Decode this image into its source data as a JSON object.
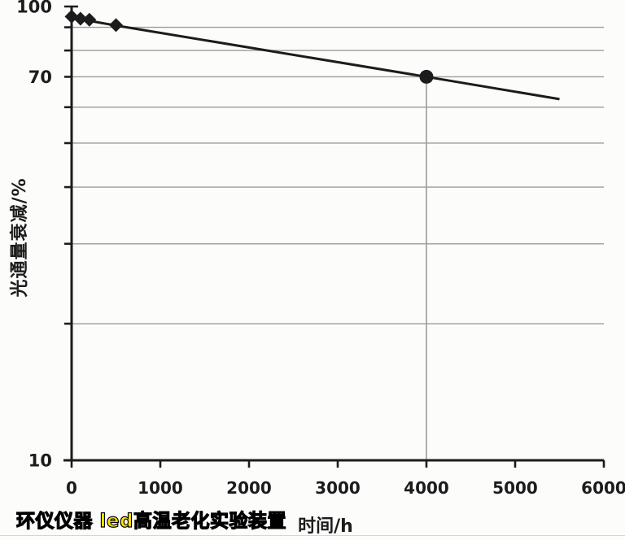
{
  "page": {
    "background": "#fcfcfb",
    "divider_color": "#d6d6d6"
  },
  "watermark": {
    "text": "环仪仪器 led高温老化实验装置",
    "fill": "#ffe800",
    "outline": "#000000"
  },
  "chart_data": {
    "type": "line",
    "title": "",
    "xlabel": "时间/h",
    "ylabel": "光通量衰减/%",
    "x_scale": "linear",
    "y_scale": "log",
    "xlim": [
      0,
      6000
    ],
    "ylim": [
      10,
      100
    ],
    "x_tick_values": [
      0,
      1000,
      2000,
      3000,
      4000,
      5000,
      6000
    ],
    "x_tick_labels": [
      "0",
      "1000",
      "2000",
      "3000",
      "4000",
      "5000",
      "6000"
    ],
    "y_gridline_values": [
      20,
      30,
      40,
      50,
      60,
      70,
      80,
      90
    ],
    "y_tick_values": [
      10,
      20,
      30,
      40,
      50,
      60,
      70,
      80,
      90,
      100
    ],
    "y_labeled_ticks": [
      {
        "value": 100,
        "label": "100"
      },
      {
        "value": 70,
        "label": "70"
      },
      {
        "value": 10,
        "label": "10"
      }
    ],
    "grid": true,
    "legend": false,
    "ink_color": "#1c1c1c",
    "grid_color": "#9b9b9b",
    "series": [
      {
        "name": "early-measurements",
        "marker": "diamond",
        "line": false,
        "points": [
          [
            0,
            95
          ],
          [
            100,
            94
          ],
          [
            200,
            93.5
          ],
          [
            500,
            91
          ]
        ]
      },
      {
        "name": "measurement-4000h",
        "marker": "circle",
        "line": false,
        "points": [
          [
            4000,
            70
          ]
        ]
      },
      {
        "name": "decay-trend-line",
        "marker": "none",
        "line": true,
        "points": [
          [
            0,
            94.5
          ],
          [
            500,
            90.8
          ],
          [
            4000,
            70
          ],
          [
            5500,
            62.5
          ]
        ]
      }
    ],
    "drop_line": {
      "x": 4000,
      "y": 70
    }
  }
}
